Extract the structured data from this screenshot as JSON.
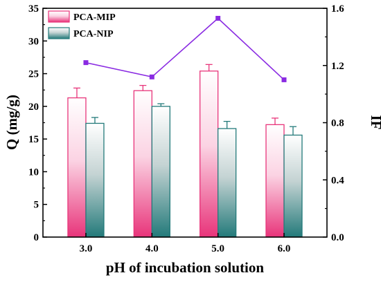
{
  "chart_data": {
    "type": "bar",
    "categories": [
      "3.0",
      "4.0",
      "5.0",
      "6.0"
    ],
    "xlabel": "pH of incubation solution",
    "ylabel": "Q (mg/g)",
    "y2label": "IF",
    "ylim": [
      0,
      35
    ],
    "y2lim": [
      0,
      1.6
    ],
    "yticks": [
      "0",
      "5",
      "10",
      "15",
      "20",
      "25",
      "30",
      "35"
    ],
    "y2ticks": [
      "0.0",
      "0.4",
      "0.8",
      "1.2",
      "1.6"
    ],
    "series": [
      {
        "name": "PCA-MIP",
        "values": [
          21.3,
          22.4,
          25.4,
          17.2
        ],
        "errors": [
          1.5,
          0.8,
          1.0,
          1.0
        ],
        "color": "#e8347a"
      },
      {
        "name": "PCA-NIP",
        "values": [
          17.4,
          20.0,
          16.6,
          15.6
        ],
        "errors": [
          0.9,
          0.4,
          1.1,
          1.3
        ],
        "color": "#237a7a"
      }
    ],
    "line_series": {
      "values": [
        1.22,
        1.12,
        1.53,
        1.1
      ],
      "color": "#8a2be2",
      "axis": "right"
    },
    "legend_position": "top-left",
    "grid": false
  }
}
